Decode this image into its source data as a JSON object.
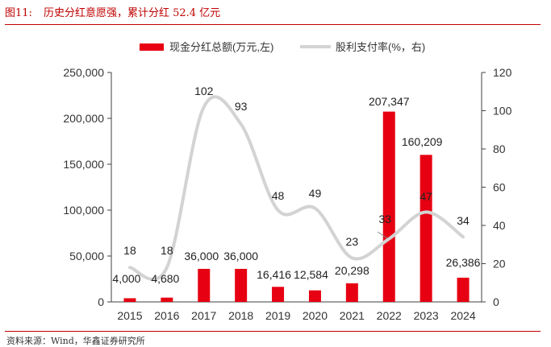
{
  "figure": {
    "number": "图11:",
    "title": "历史分红意愿强，累计分红 52.4 亿元",
    "source": "资料来源：Wind，华鑫证券研究所"
  },
  "colors": {
    "bar": "#e60012",
    "line": "#d3d3d3",
    "accent": "#c00000",
    "axis": "#404040"
  },
  "chart_data": {
    "type": "bar+line",
    "categories": [
      "2015",
      "2016",
      "2017",
      "2018",
      "2019",
      "2020",
      "2021",
      "2022",
      "2023",
      "2024"
    ],
    "series": [
      {
        "name": "现金分红总额(万元,左)",
        "type": "bar",
        "axis": "left",
        "values": [
          4000,
          4680,
          36000,
          36000,
          16416,
          12584,
          20298,
          207347,
          160209,
          26386
        ],
        "labels": [
          "4,000",
          "4,680",
          "36,000",
          "36,000",
          "16,416",
          "12,584",
          "20,298",
          "207,347",
          "160,209",
          "26,386"
        ]
      },
      {
        "name": "股利支付率(%，右)",
        "type": "line",
        "axis": "right",
        "values": [
          18,
          18,
          102,
          93,
          48,
          49,
          23,
          33,
          47,
          34
        ],
        "labels": [
          "18",
          "18",
          "102",
          "93",
          "48",
          "49",
          "23",
          "33",
          "47",
          "34"
        ]
      }
    ],
    "left_axis": {
      "min": 0,
      "max": 250000,
      "ticks": [
        "0",
        "50,000",
        "100,000",
        "150,000",
        "200,000",
        "250,000"
      ]
    },
    "right_axis": {
      "min": 0,
      "max": 120,
      "ticks": [
        "0",
        "20",
        "40",
        "60",
        "80",
        "100",
        "120"
      ]
    }
  }
}
